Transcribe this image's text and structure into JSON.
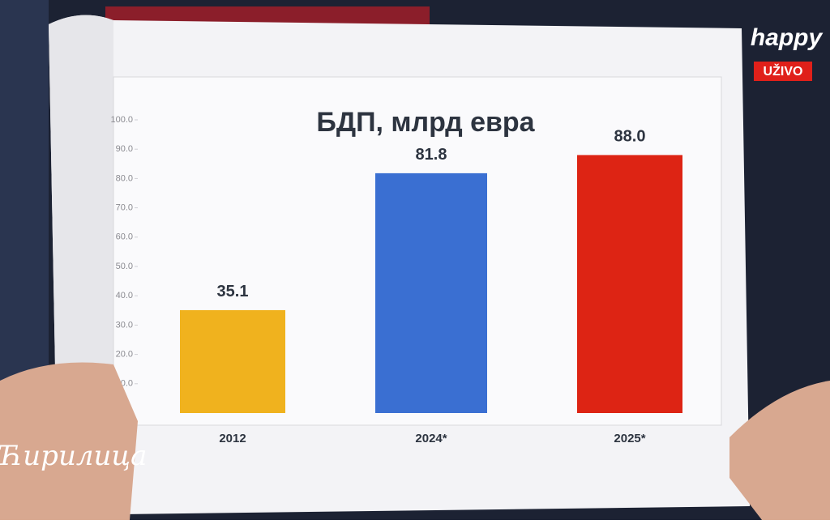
{
  "chart_data": {
    "type": "bar",
    "title": "БДП, млрд евра",
    "categories": [
      "2012",
      "2024*",
      "2025*"
    ],
    "values": [
      35.1,
      81.8,
      88.0
    ],
    "value_labels": [
      "35.1",
      "81.8",
      "88.0"
    ],
    "colors": [
      "#f0b21e",
      "#3a6fd2",
      "#dd2414"
    ],
    "ylim": [
      0,
      100
    ],
    "yticks": [
      {
        "value": 10,
        "label": "10.0"
      },
      {
        "value": 20,
        "label": "20.0"
      },
      {
        "value": 30,
        "label": "30.0"
      },
      {
        "value": 40,
        "label": "40.0"
      },
      {
        "value": 50,
        "label": "50.0"
      },
      {
        "value": 60,
        "label": "60.0"
      },
      {
        "value": 70,
        "label": "70.0"
      },
      {
        "value": 80,
        "label": "80.0"
      },
      {
        "value": 90,
        "label": "90.0"
      },
      {
        "value": 100,
        "label": "100.0"
      }
    ],
    "grid": false
  },
  "overlay": {
    "channel": "happy",
    "live": "UŽIVO",
    "show": "Ћирилица"
  }
}
